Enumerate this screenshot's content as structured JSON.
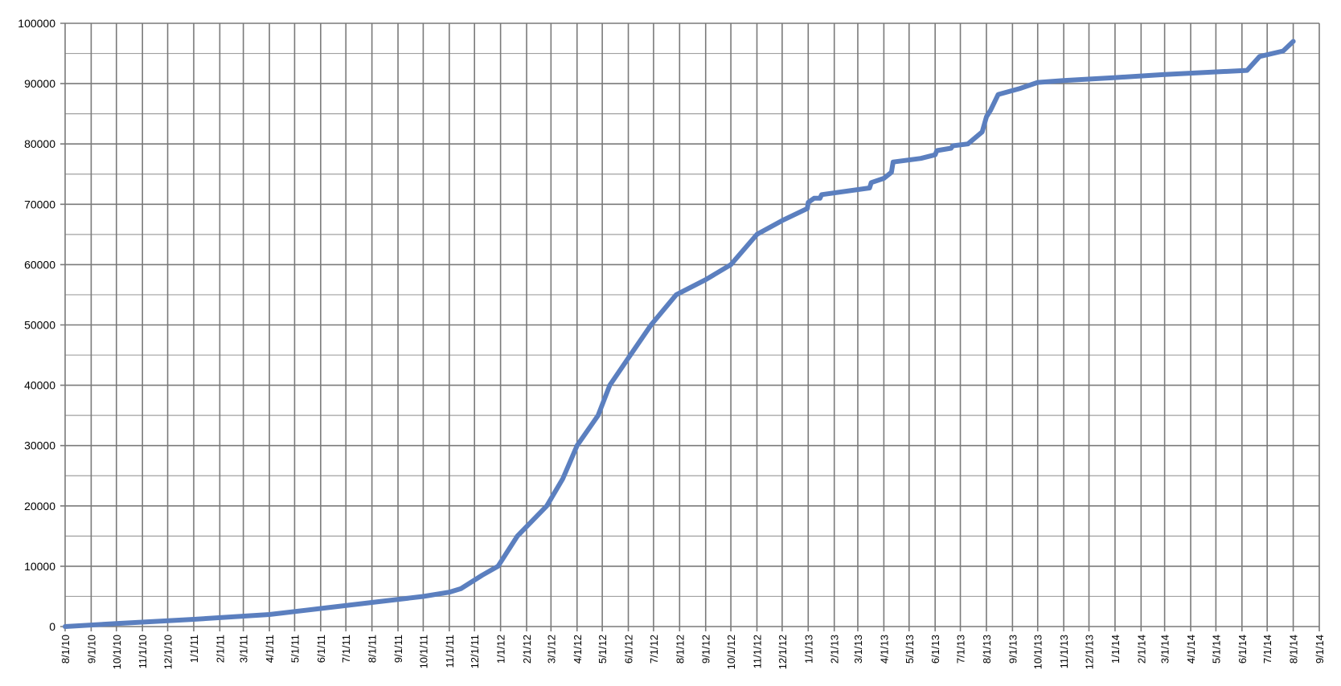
{
  "chart_data": {
    "type": "line",
    "title": "",
    "xlabel": "",
    "ylabel": "",
    "x_type": "date",
    "xlim": [
      "2010-08-01",
      "2014-09-01"
    ],
    "ylim": [
      0,
      100000
    ],
    "y_ticks": [
      0,
      10000,
      20000,
      30000,
      40000,
      50000,
      60000,
      70000,
      80000,
      90000,
      100000
    ],
    "y_tick_labels": [
      "0",
      "10000",
      "20000",
      "30000",
      "40000",
      "50000",
      "60000",
      "70000",
      "80000",
      "90000",
      "100000"
    ],
    "y_minor_step": 5000,
    "x_ticks": [
      "2010-08-01",
      "2010-09-01",
      "2010-10-01",
      "2010-11-01",
      "2010-12-01",
      "2011-01-01",
      "2011-02-01",
      "2011-03-01",
      "2011-04-01",
      "2011-05-01",
      "2011-06-01",
      "2011-07-01",
      "2011-08-01",
      "2011-09-01",
      "2011-10-01",
      "2011-11-01",
      "2011-12-01",
      "2012-01-01",
      "2012-02-01",
      "2012-03-01",
      "2012-04-01",
      "2012-05-01",
      "2012-06-01",
      "2012-07-01",
      "2012-08-01",
      "2012-09-01",
      "2012-10-01",
      "2012-11-01",
      "2012-12-01",
      "2013-01-01",
      "2013-02-01",
      "2013-03-01",
      "2013-04-01",
      "2013-05-01",
      "2013-06-01",
      "2013-07-01",
      "2013-08-01",
      "2013-09-01",
      "2013-10-01",
      "2013-11-01",
      "2013-12-01",
      "2014-01-01",
      "2014-02-01",
      "2014-03-01",
      "2014-04-01",
      "2014-05-01",
      "2014-06-01",
      "2014-07-01",
      "2014-08-01",
      "2014-09-01"
    ],
    "x_tick_labels": [
      "8/1/10",
      "9/1/10",
      "10/1/10",
      "11/1/10",
      "12/1/10",
      "1/1/11",
      "2/1/11",
      "3/1/11",
      "4/1/11",
      "5/1/11",
      "6/1/11",
      "7/1/11",
      "8/1/11",
      "9/1/11",
      "10/1/11",
      "11/1/11",
      "12/1/11",
      "1/1/12",
      "2/1/12",
      "3/1/12",
      "4/1/12",
      "5/1/12",
      "6/1/12",
      "7/1/12",
      "8/1/12",
      "9/1/12",
      "10/1/12",
      "11/1/12",
      "12/1/12",
      "1/1/13",
      "2/1/13",
      "3/1/13",
      "4/1/13",
      "5/1/13",
      "6/1/13",
      "7/1/13",
      "8/1/13",
      "9/1/13",
      "10/1/13",
      "11/1/13",
      "12/1/13",
      "1/1/14",
      "2/1/14",
      "3/1/14",
      "4/1/14",
      "5/1/14",
      "6/1/14",
      "7/1/14",
      "8/1/14",
      "9/1/14"
    ],
    "grid": true,
    "legend": "none",
    "series": [
      {
        "color": "#5b7fbf",
        "points": [
          [
            "2010-08-01",
            0
          ],
          [
            "2010-10-01",
            500
          ],
          [
            "2011-01-01",
            1200
          ],
          [
            "2011-04-01",
            2000
          ],
          [
            "2011-06-01",
            3000
          ],
          [
            "2011-08-01",
            4000
          ],
          [
            "2011-10-01",
            5000
          ],
          [
            "2011-11-01",
            5700
          ],
          [
            "2011-11-15",
            6300
          ],
          [
            "2011-12-10",
            8500
          ],
          [
            "2011-12-29",
            10000
          ],
          [
            "2012-01-21",
            15000
          ],
          [
            "2012-02-25",
            20000
          ],
          [
            "2012-03-15",
            24500
          ],
          [
            "2012-04-01",
            30000
          ],
          [
            "2012-04-26",
            35000
          ],
          [
            "2012-05-10",
            40000
          ],
          [
            "2012-06-01",
            44500
          ],
          [
            "2012-06-28",
            50000
          ],
          [
            "2012-07-28",
            55000
          ],
          [
            "2012-09-01",
            57500
          ],
          [
            "2012-10-01",
            60000
          ],
          [
            "2012-11-01",
            65000
          ],
          [
            "2012-12-01",
            67300
          ],
          [
            "2012-12-31",
            69300
          ],
          [
            "2013-01-01",
            70300
          ],
          [
            "2013-01-08",
            71000
          ],
          [
            "2013-01-15",
            71000
          ],
          [
            "2013-01-17",
            71600
          ],
          [
            "2013-03-15",
            72700
          ],
          [
            "2013-03-17",
            73600
          ],
          [
            "2013-04-01",
            74300
          ],
          [
            "2013-04-10",
            75300
          ],
          [
            "2013-04-12",
            77000
          ],
          [
            "2013-05-15",
            77600
          ],
          [
            "2013-06-01",
            78200
          ],
          [
            "2013-06-03",
            78900
          ],
          [
            "2013-06-20",
            79300
          ],
          [
            "2013-06-22",
            79700
          ],
          [
            "2013-07-10",
            80000
          ],
          [
            "2013-07-27",
            82000
          ],
          [
            "2013-08-01",
            84500
          ],
          [
            "2013-08-06",
            85600
          ],
          [
            "2013-08-15",
            88200
          ],
          [
            "2013-09-10",
            89200
          ],
          [
            "2013-10-01",
            90200
          ],
          [
            "2013-11-01",
            90500
          ],
          [
            "2014-01-01",
            91000
          ],
          [
            "2014-03-01",
            91500
          ],
          [
            "2014-06-07",
            92200
          ],
          [
            "2014-06-22",
            94500
          ],
          [
            "2014-07-20",
            95400
          ],
          [
            "2014-08-01",
            97000
          ]
        ]
      }
    ]
  }
}
